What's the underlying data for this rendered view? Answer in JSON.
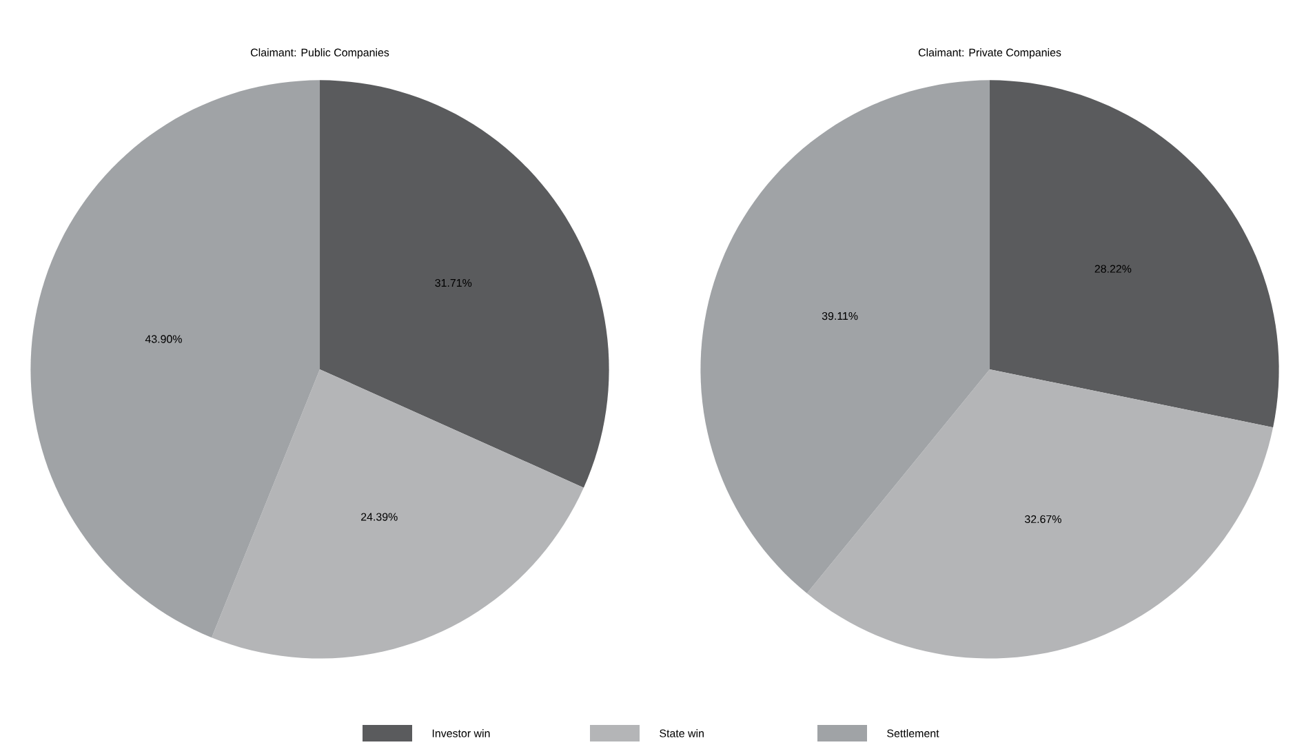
{
  "chart_data": [
    {
      "type": "pie",
      "title": "Claimant: Public Companies",
      "categories": [
        "Investor win",
        "State win",
        "Settlement"
      ],
      "values": [
        31.71,
        24.39,
        43.9
      ],
      "colors": [
        "#5a5b5d",
        "#b4b5b7",
        "#a0a3a6"
      ],
      "value_labels": [
        "31.71%",
        "24.39%",
        "43.90%"
      ],
      "legend": "bottom"
    },
    {
      "type": "pie",
      "title": "Claimant: Private Companies",
      "categories": [
        null,
        null,
        null
      ],
      "values": [
        28.22,
        32.67,
        39.11
      ],
      "colors": [
        "#5a5b5d",
        "#b4b5b7",
        "#a0a3a6"
      ],
      "value_labels": [
        "28.22%",
        "32.67%",
        "39.11%"
      ]
    }
  ]
}
